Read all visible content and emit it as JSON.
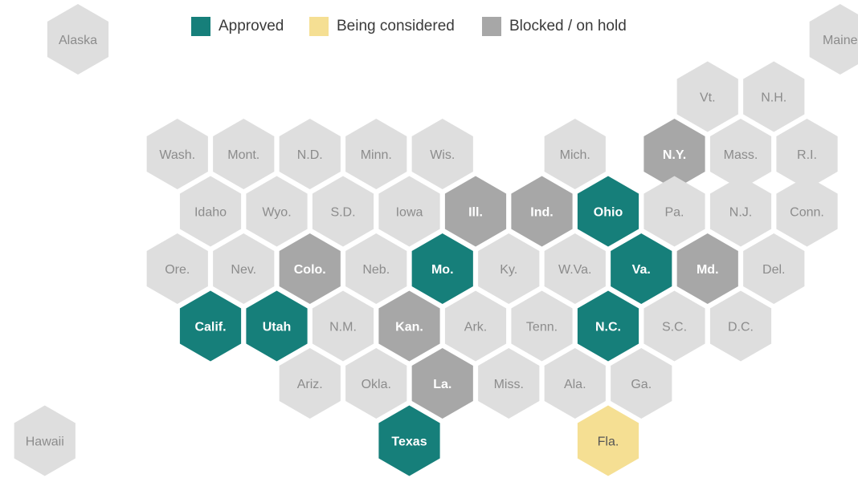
{
  "colors": {
    "approved": "#167f7a",
    "considered": "#f5df93",
    "blocked": "#a7a7a7",
    "none": "#dedede",
    "label_light": "#ffffff",
    "label_dark": "#8c8c8c",
    "label_considered": "#555555"
  },
  "legend": [
    {
      "status": "approved",
      "label": "Approved"
    },
    {
      "status": "considered",
      "label": "Being considered"
    },
    {
      "status": "blocked",
      "label": "Blocked / on hold"
    }
  ],
  "states": [
    {
      "abbr": "Alaska",
      "row": 0,
      "col": 0,
      "status": "none"
    },
    {
      "abbr": "Maine",
      "row": 0,
      "col": 11.5,
      "status": "none"
    },
    {
      "abbr": "Vt.",
      "row": 1,
      "col": 9.5,
      "status": "none"
    },
    {
      "abbr": "N.H.",
      "row": 1,
      "col": 10.5,
      "status": "none"
    },
    {
      "abbr": "Wash.",
      "row": 2,
      "col": 1.5,
      "status": "none"
    },
    {
      "abbr": "Mont.",
      "row": 2,
      "col": 2.5,
      "status": "none"
    },
    {
      "abbr": "N.D.",
      "row": 2,
      "col": 3.5,
      "status": "none"
    },
    {
      "abbr": "Minn.",
      "row": 2,
      "col": 4.5,
      "status": "none"
    },
    {
      "abbr": "Wis.",
      "row": 2,
      "col": 5.5,
      "status": "none"
    },
    {
      "abbr": "Mich.",
      "row": 2,
      "col": 7.5,
      "status": "none"
    },
    {
      "abbr": "N.Y.",
      "row": 2,
      "col": 9,
      "status": "blocked"
    },
    {
      "abbr": "Mass.",
      "row": 2,
      "col": 10,
      "status": "none"
    },
    {
      "abbr": "R.I.",
      "row": 2,
      "col": 11,
      "status": "none"
    },
    {
      "abbr": "Idaho",
      "row": 3,
      "col": 2,
      "status": "none"
    },
    {
      "abbr": "Wyo.",
      "row": 3,
      "col": 3,
      "status": "none"
    },
    {
      "abbr": "S.D.",
      "row": 3,
      "col": 4,
      "status": "none"
    },
    {
      "abbr": "Iowa",
      "row": 3,
      "col": 5,
      "status": "none"
    },
    {
      "abbr": "Ill.",
      "row": 3,
      "col": 6,
      "status": "blocked"
    },
    {
      "abbr": "Ind.",
      "row": 3,
      "col": 7,
      "status": "blocked"
    },
    {
      "abbr": "Ohio",
      "row": 3,
      "col": 8,
      "status": "approved"
    },
    {
      "abbr": "Pa.",
      "row": 3,
      "col": 9,
      "status": "none"
    },
    {
      "abbr": "N.J.",
      "row": 3,
      "col": 10,
      "status": "none"
    },
    {
      "abbr": "Conn.",
      "row": 3,
      "col": 11,
      "status": "none"
    },
    {
      "abbr": "Ore.",
      "row": 4,
      "col": 1.5,
      "status": "none"
    },
    {
      "abbr": "Nev.",
      "row": 4,
      "col": 2.5,
      "status": "none"
    },
    {
      "abbr": "Colo.",
      "row": 4,
      "col": 3.5,
      "status": "blocked"
    },
    {
      "abbr": "Neb.",
      "row": 4,
      "col": 4.5,
      "status": "none"
    },
    {
      "abbr": "Mo.",
      "row": 4,
      "col": 5.5,
      "status": "approved"
    },
    {
      "abbr": "Ky.",
      "row": 4,
      "col": 6.5,
      "status": "none"
    },
    {
      "abbr": "W.Va.",
      "row": 4,
      "col": 7.5,
      "status": "none"
    },
    {
      "abbr": "Va.",
      "row": 4,
      "col": 8.5,
      "status": "approved"
    },
    {
      "abbr": "Md.",
      "row": 4,
      "col": 9.5,
      "status": "blocked"
    },
    {
      "abbr": "Del.",
      "row": 4,
      "col": 10.5,
      "status": "none"
    },
    {
      "abbr": "Calif.",
      "row": 5,
      "col": 2,
      "status": "approved"
    },
    {
      "abbr": "Utah",
      "row": 5,
      "col": 3,
      "status": "approved"
    },
    {
      "abbr": "N.M.",
      "row": 5,
      "col": 4,
      "status": "none"
    },
    {
      "abbr": "Kan.",
      "row": 5,
      "col": 5,
      "status": "blocked"
    },
    {
      "abbr": "Ark.",
      "row": 5,
      "col": 6,
      "status": "none"
    },
    {
      "abbr": "Tenn.",
      "row": 5,
      "col": 7,
      "status": "none"
    },
    {
      "abbr": "N.C.",
      "row": 5,
      "col": 8,
      "status": "approved"
    },
    {
      "abbr": "S.C.",
      "row": 5,
      "col": 9,
      "status": "none"
    },
    {
      "abbr": "D.C.",
      "row": 5,
      "col": 10,
      "status": "none"
    },
    {
      "abbr": "Ariz.",
      "row": 6,
      "col": 3.5,
      "status": "none"
    },
    {
      "abbr": "Okla.",
      "row": 6,
      "col": 4.5,
      "status": "none"
    },
    {
      "abbr": "La.",
      "row": 6,
      "col": 5.5,
      "status": "blocked"
    },
    {
      "abbr": "Miss.",
      "row": 6,
      "col": 6.5,
      "status": "none"
    },
    {
      "abbr": "Ala.",
      "row": 6,
      "col": 7.5,
      "status": "none"
    },
    {
      "abbr": "Ga.",
      "row": 6,
      "col": 8.5,
      "status": "none"
    },
    {
      "abbr": "Hawaii",
      "row": 7,
      "col": -0.5,
      "status": "none"
    },
    {
      "abbr": "Texas",
      "row": 7,
      "col": 5,
      "status": "approved"
    },
    {
      "abbr": "Fla.",
      "row": 7,
      "col": 8,
      "status": "considered"
    }
  ]
}
